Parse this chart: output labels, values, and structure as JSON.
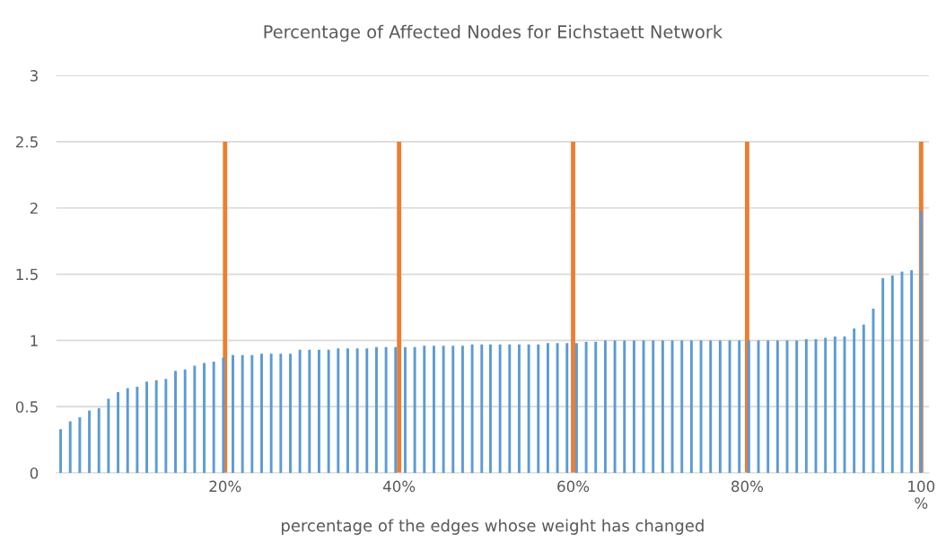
{
  "chart_data": {
    "type": "bar",
    "title": "Percentage of Affected Nodes for Eichstaett Network",
    "xlabel": "percentage of the edges whose weight has changed",
    "xlim": [
      0.6,
      100.9
    ],
    "xticks": [
      {
        "value": 20,
        "label": "20%"
      },
      {
        "value": 40,
        "label": "40%"
      },
      {
        "value": 60,
        "label": "60%"
      },
      {
        "value": 80,
        "label": "80%"
      },
      {
        "value": 100,
        "label": "100\n%"
      }
    ],
    "ylim": [
      0,
      3
    ],
    "yticks": [
      0,
      0.5,
      1,
      {
        "value": 1.5,
        "label": "1.5"
      },
      2,
      {
        "value": 2.5,
        "label": "2.5"
      },
      3
    ],
    "grid": "y",
    "legend": false,
    "series": [
      {
        "color": "#ed7d31",
        "x": [
          20,
          40,
          60,
          80,
          100
        ],
        "values": [
          2.5,
          2.5,
          2.5,
          2.5,
          2.5
        ]
      },
      {
        "color": "#5b9bd5",
        "x": [
          1.1,
          2.2,
          3.3,
          4.4,
          5.5,
          6.6,
          7.7,
          8.8,
          9.9,
          11.0,
          12.1,
          13.2,
          14.3,
          15.4,
          16.5,
          17.6,
          18.7,
          19.8,
          20.9,
          22.0,
          23.1,
          24.2,
          25.3,
          26.4,
          27.5,
          28.6,
          29.7,
          30.8,
          31.9,
          33.0,
          34.1,
          35.2,
          36.3,
          37.4,
          38.5,
          39.6,
          40.7,
          41.8,
          42.9,
          44.0,
          45.1,
          46.2,
          47.3,
          48.4,
          49.5,
          50.5,
          51.6,
          52.7,
          53.8,
          54.9,
          56.0,
          57.1,
          58.2,
          59.3,
          60.4,
          61.5,
          62.6,
          63.7,
          64.8,
          65.9,
          67.0,
          68.1,
          69.2,
          70.3,
          71.4,
          72.5,
          73.6,
          74.7,
          75.8,
          76.9,
          78.0,
          79.1,
          80.2,
          81.3,
          82.4,
          83.5,
          84.6,
          85.7,
          86.8,
          87.9,
          89.0,
          90.1,
          91.2,
          92.3,
          93.4,
          94.5,
          95.6,
          96.7,
          97.8,
          98.9,
          100.0
        ],
        "values": [
          0.33,
          0.39,
          0.42,
          0.47,
          0.49,
          0.56,
          0.61,
          0.64,
          0.65,
          0.69,
          0.7,
          0.71,
          0.77,
          0.78,
          0.81,
          0.83,
          0.84,
          0.87,
          0.89,
          0.89,
          0.89,
          0.9,
          0.9,
          0.9,
          0.9,
          0.93,
          0.93,
          0.93,
          0.93,
          0.94,
          0.94,
          0.94,
          0.94,
          0.95,
          0.95,
          0.95,
          0.95,
          0.95,
          0.96,
          0.96,
          0.96,
          0.96,
          0.96,
          0.97,
          0.97,
          0.97,
          0.97,
          0.97,
          0.97,
          0.97,
          0.97,
          0.98,
          0.98,
          0.98,
          0.98,
          0.99,
          0.99,
          1.0,
          1.0,
          1.0,
          1.0,
          1.0,
          1.0,
          1.0,
          1.0,
          1.0,
          1.0,
          1.0,
          1.0,
          1.0,
          1.0,
          1.0,
          1.0,
          1.0,
          1.0,
          1.0,
          1.0,
          1.0,
          1.01,
          1.01,
          1.02,
          1.03,
          1.03,
          1.09,
          1.12,
          1.24,
          1.47,
          1.49,
          1.52,
          1.53,
          1.98
        ]
      }
    ]
  }
}
